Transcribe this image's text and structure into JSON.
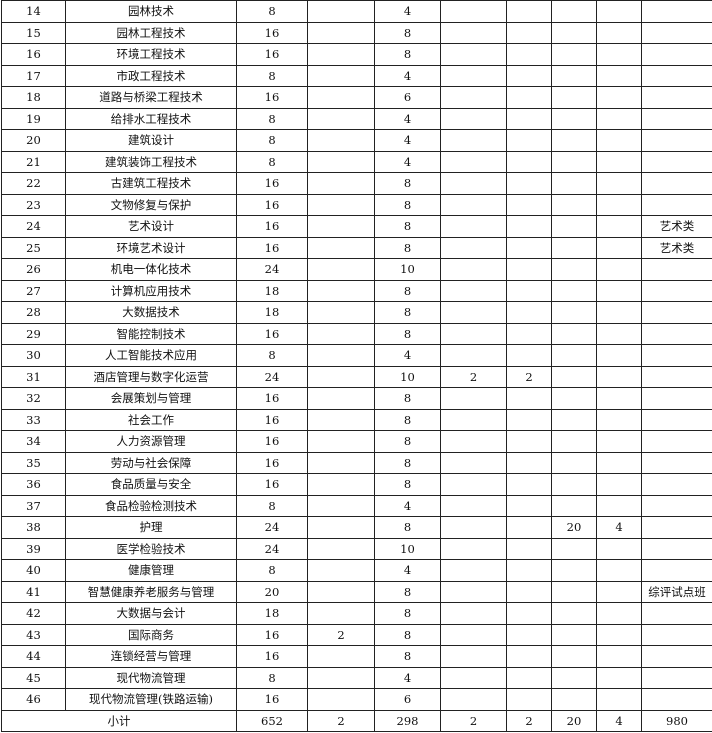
{
  "rows": [
    {
      "no": "14",
      "name": "园林技术",
      "c3": "8",
      "c4": "",
      "c5": "4",
      "c6": "",
      "c7": "",
      "c8": "",
      "c9": "",
      "remark": ""
    },
    {
      "no": "15",
      "name": "园林工程技术",
      "c3": "16",
      "c4": "",
      "c5": "8",
      "c6": "",
      "c7": "",
      "c8": "",
      "c9": "",
      "remark": ""
    },
    {
      "no": "16",
      "name": "环境工程技术",
      "c3": "16",
      "c4": "",
      "c5": "8",
      "c6": "",
      "c7": "",
      "c8": "",
      "c9": "",
      "remark": ""
    },
    {
      "no": "17",
      "name": "市政工程技术",
      "c3": "8",
      "c4": "",
      "c5": "4",
      "c6": "",
      "c7": "",
      "c8": "",
      "c9": "",
      "remark": ""
    },
    {
      "no": "18",
      "name": "道路与桥梁工程技术",
      "c3": "16",
      "c4": "",
      "c5": "6",
      "c6": "",
      "c7": "",
      "c8": "",
      "c9": "",
      "remark": ""
    },
    {
      "no": "19",
      "name": "给排水工程技术",
      "c3": "8",
      "c4": "",
      "c5": "4",
      "c6": "",
      "c7": "",
      "c8": "",
      "c9": "",
      "remark": ""
    },
    {
      "no": "20",
      "name": "建筑设计",
      "c3": "8",
      "c4": "",
      "c5": "4",
      "c6": "",
      "c7": "",
      "c8": "",
      "c9": "",
      "remark": ""
    },
    {
      "no": "21",
      "name": "建筑装饰工程技术",
      "c3": "8",
      "c4": "",
      "c5": "4",
      "c6": "",
      "c7": "",
      "c8": "",
      "c9": "",
      "remark": ""
    },
    {
      "no": "22",
      "name": "古建筑工程技术",
      "c3": "16",
      "c4": "",
      "c5": "8",
      "c6": "",
      "c7": "",
      "c8": "",
      "c9": "",
      "remark": ""
    },
    {
      "no": "23",
      "name": "文物修复与保护",
      "c3": "16",
      "c4": "",
      "c5": "8",
      "c6": "",
      "c7": "",
      "c8": "",
      "c9": "",
      "remark": ""
    },
    {
      "no": "24",
      "name": "艺术设计",
      "c3": "16",
      "c4": "",
      "c5": "8",
      "c6": "",
      "c7": "",
      "c8": "",
      "c9": "",
      "remark": "艺术类"
    },
    {
      "no": "25",
      "name": "环境艺术设计",
      "c3": "16",
      "c4": "",
      "c5": "8",
      "c6": "",
      "c7": "",
      "c8": "",
      "c9": "",
      "remark": "艺术类"
    },
    {
      "no": "26",
      "name": "机电一体化技术",
      "c3": "24",
      "c4": "",
      "c5": "10",
      "c6": "",
      "c7": "",
      "c8": "",
      "c9": "",
      "remark": ""
    },
    {
      "no": "27",
      "name": "计算机应用技术",
      "c3": "18",
      "c4": "",
      "c5": "8",
      "c6": "",
      "c7": "",
      "c8": "",
      "c9": "",
      "remark": ""
    },
    {
      "no": "28",
      "name": "大数据技术",
      "c3": "18",
      "c4": "",
      "c5": "8",
      "c6": "",
      "c7": "",
      "c8": "",
      "c9": "",
      "remark": ""
    },
    {
      "no": "29",
      "name": "智能控制技术",
      "c3": "16",
      "c4": "",
      "c5": "8",
      "c6": "",
      "c7": "",
      "c8": "",
      "c9": "",
      "remark": ""
    },
    {
      "no": "30",
      "name": "人工智能技术应用",
      "c3": "8",
      "c4": "",
      "c5": "4",
      "c6": "",
      "c7": "",
      "c8": "",
      "c9": "",
      "remark": ""
    },
    {
      "no": "31",
      "name": "酒店管理与数字化运营",
      "c3": "24",
      "c4": "",
      "c5": "10",
      "c6": "2",
      "c7": "2",
      "c8": "",
      "c9": "",
      "remark": ""
    },
    {
      "no": "32",
      "name": "会展策划与管理",
      "c3": "16",
      "c4": "",
      "c5": "8",
      "c6": "",
      "c7": "",
      "c8": "",
      "c9": "",
      "remark": ""
    },
    {
      "no": "33",
      "name": "社会工作",
      "c3": "16",
      "c4": "",
      "c5": "8",
      "c6": "",
      "c7": "",
      "c8": "",
      "c9": "",
      "remark": ""
    },
    {
      "no": "34",
      "name": "人力资源管理",
      "c3": "16",
      "c4": "",
      "c5": "8",
      "c6": "",
      "c7": "",
      "c8": "",
      "c9": "",
      "remark": ""
    },
    {
      "no": "35",
      "name": "劳动与社会保障",
      "c3": "16",
      "c4": "",
      "c5": "8",
      "c6": "",
      "c7": "",
      "c8": "",
      "c9": "",
      "remark": ""
    },
    {
      "no": "36",
      "name": "食品质量与安全",
      "c3": "16",
      "c4": "",
      "c5": "8",
      "c6": "",
      "c7": "",
      "c8": "",
      "c9": "",
      "remark": ""
    },
    {
      "no": "37",
      "name": "食品检验检测技术",
      "c3": "8",
      "c4": "",
      "c5": "4",
      "c6": "",
      "c7": "",
      "c8": "",
      "c9": "",
      "remark": ""
    },
    {
      "no": "38",
      "name": "护理",
      "c3": "24",
      "c4": "",
      "c5": "8",
      "c6": "",
      "c7": "",
      "c8": "20",
      "c9": "4",
      "remark": ""
    },
    {
      "no": "39",
      "name": "医学检验技术",
      "c3": "24",
      "c4": "",
      "c5": "10",
      "c6": "",
      "c7": "",
      "c8": "",
      "c9": "",
      "remark": ""
    },
    {
      "no": "40",
      "name": "健康管理",
      "c3": "8",
      "c4": "",
      "c5": "4",
      "c6": "",
      "c7": "",
      "c8": "",
      "c9": "",
      "remark": ""
    },
    {
      "no": "41",
      "name": "智慧健康养老服务与管理",
      "c3": "20",
      "c4": "",
      "c5": "8",
      "c6": "",
      "c7": "",
      "c8": "",
      "c9": "",
      "remark": "综评试点班"
    },
    {
      "no": "42",
      "name": "大数据与会计",
      "c3": "18",
      "c4": "",
      "c5": "8",
      "c6": "",
      "c7": "",
      "c8": "",
      "c9": "",
      "remark": ""
    },
    {
      "no": "43",
      "name": "国际商务",
      "c3": "16",
      "c4": "2",
      "c5": "8",
      "c6": "",
      "c7": "",
      "c8": "",
      "c9": "",
      "remark": ""
    },
    {
      "no": "44",
      "name": "连锁经营与管理",
      "c3": "16",
      "c4": "",
      "c5": "8",
      "c6": "",
      "c7": "",
      "c8": "",
      "c9": "",
      "remark": ""
    },
    {
      "no": "45",
      "name": "现代物流管理",
      "c3": "8",
      "c4": "",
      "c5": "4",
      "c6": "",
      "c7": "",
      "c8": "",
      "c9": "",
      "remark": ""
    },
    {
      "no": "46",
      "name": "现代物流管理(铁路运输)",
      "c3": "16",
      "c4": "",
      "c5": "6",
      "c6": "",
      "c7": "",
      "c8": "",
      "c9": "",
      "remark": ""
    }
  ],
  "subtotal": {
    "label": "小计",
    "values": [
      "652",
      "2",
      "298",
      "2",
      "2",
      "20",
      "4",
      "980"
    ]
  }
}
